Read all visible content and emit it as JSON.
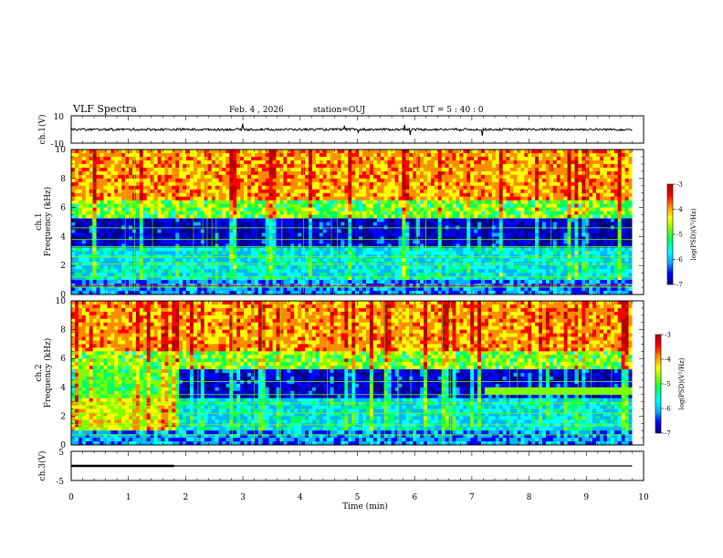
{
  "header": {
    "title": "VLF Spectra",
    "date": "Feb. 4 , 2026",
    "station": "station=OUJ",
    "start": "start UT =  5 : 40 : 0"
  },
  "chart_data": [
    {
      "type": "line",
      "name": "ch1-waveform",
      "ylabel": "ch.1(V)",
      "ylim": [
        -10,
        10
      ],
      "yticks": [
        "10",
        "-10"
      ],
      "x_range": [
        0,
        9.8
      ],
      "baseline": 0
    },
    {
      "type": "heatmap",
      "name": "ch1-spectrogram",
      "ylabel": "ch.1\nFrequency (kHz)",
      "ylim": [
        0,
        10
      ],
      "yticks": [
        "10",
        "8",
        "6",
        "4",
        "2",
        "0"
      ],
      "x_range": [
        0,
        9.8
      ],
      "colorbar": {
        "label": "log(PSD)(V²/Hz)",
        "ticks": [
          "-3",
          "-4",
          "-5",
          "-6",
          "-7"
        ],
        "range": [
          -7,
          -3
        ]
      }
    },
    {
      "type": "heatmap",
      "name": "ch2-spectrogram",
      "ylabel": "ch.2\nFrequency (kHz)",
      "ylim": [
        0,
        10
      ],
      "yticks": [
        "10",
        "8",
        "6",
        "4",
        "2",
        "0"
      ],
      "x_range": [
        0,
        9.8
      ],
      "colorbar": {
        "label": "log(PSD)(V²/Hz)",
        "ticks": [
          "-3",
          "-4",
          "-5",
          "-6",
          "-7"
        ],
        "range": [
          -7,
          -3
        ]
      }
    },
    {
      "type": "line",
      "name": "ch3-signal",
      "ylabel": "ch.3(V)",
      "ylim": [
        -5,
        5
      ],
      "yticks": [
        "5",
        "-5"
      ],
      "segments": [
        {
          "x": [
            0,
            1.8
          ],
          "y": [
            0,
            0
          ],
          "weight": "thick"
        },
        {
          "x": [
            1.8,
            9.8
          ],
          "y": [
            0,
            0
          ],
          "weight": "thin"
        }
      ]
    }
  ],
  "x_axis": {
    "label": "Time (min)",
    "ticks": [
      "0",
      "1",
      "2",
      "3",
      "4",
      "5",
      "6",
      "7",
      "8",
      "9",
      "10"
    ],
    "xlim": [
      0,
      10
    ]
  },
  "colors": {
    "colormap": [
      "#00008b",
      "#0000ff",
      "#00b4ff",
      "#00ffff",
      "#00ff64",
      "#7fff00",
      "#ffff00",
      "#ff8c00",
      "#ff0000",
      "#b40000"
    ]
  }
}
